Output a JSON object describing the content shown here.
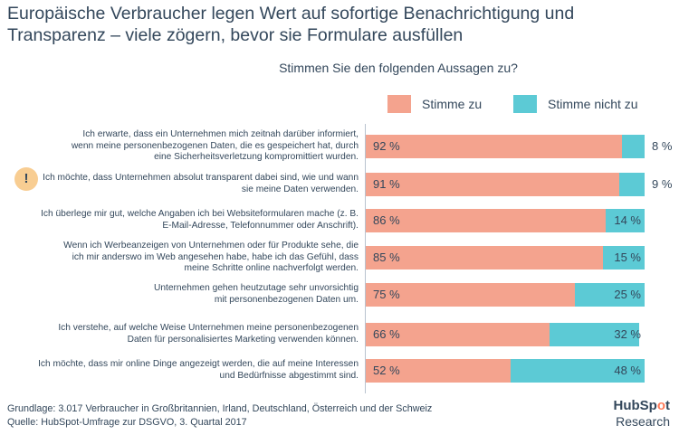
{
  "title": "Europäische Verbraucher legen Wert auf sofortige Benachrichtigung und Transparenz – viele zögern, bevor sie Formulare ausfüllen",
  "chart_data": {
    "type": "bar",
    "orientation": "horizontal",
    "stacked": true,
    "title": "Stimmen Sie den folgenden Aussagen zu?",
    "categories": [
      "Ich erwarte, dass ein Unternehmen mich zeitnah darüber informiert, wenn meine personenbezogenen Daten, die es gespeichert hat, durch eine Sicherheitsverletzung kompromittiert wurden.",
      "Ich möchte, dass Unternehmen absolut transparent dabei sind, wie und wann sie meine Daten verwenden.",
      "Ich überlege mir gut, welche Angaben ich bei Websiteformularen mache (z. B. E-Mail-Adresse, Telefonnummer oder Anschrift).",
      "Wenn ich Werbeanzeigen von Unternehmen oder für Produkte sehe, die ich mir anderswo im Web angesehen habe, habe ich das Gefühl, dass meine Schritte online nachverfolgt werden.",
      "Unternehmen gehen heutzutage sehr unvorsichtig mit personenbezogenen Daten um.",
      "Ich verstehe, auf welche Weise Unternehmen meine personenbezogenen Daten für personalisiertes Marketing verwenden können.",
      "Ich möchte, dass mir online Dinge angezeigt werden, die auf meine Interessen und Bedürfnisse abgestimmt sind."
    ],
    "series": [
      {
        "name": "Stimme zu",
        "color": "#f4a38e",
        "values": [
          92,
          91,
          86,
          85,
          75,
          66,
          52
        ],
        "labels": [
          "92 %",
          "91 %",
          "86 %",
          "85 %",
          "75 %",
          "66 %",
          "52 %"
        ]
      },
      {
        "name": "Stimme nicht zu",
        "color": "#5ccad5",
        "values": [
          8,
          9,
          14,
          15,
          25,
          32,
          48
        ],
        "labels": [
          "8 %",
          "9 %",
          "14 %",
          "15 %",
          "25 %",
          "32 %",
          "48 %"
        ]
      }
    ],
    "xlim": [
      0,
      100
    ],
    "unit": "%"
  },
  "alert_icon": {
    "icon": "exclamation-icon",
    "symbol": "!"
  },
  "footer": {
    "source": "Grundlage: 3.017 Verbraucher in Großbritannien, Irland, Deutschland, Österreich und der Schweiz Quelle: HubSpot-Umfrage zur DSGVO, 3. Quartal 2017"
  },
  "brand": {
    "name_prefix": "HubSp",
    "name_dot": "o",
    "name_suffix": "t",
    "sub": "Research"
  }
}
